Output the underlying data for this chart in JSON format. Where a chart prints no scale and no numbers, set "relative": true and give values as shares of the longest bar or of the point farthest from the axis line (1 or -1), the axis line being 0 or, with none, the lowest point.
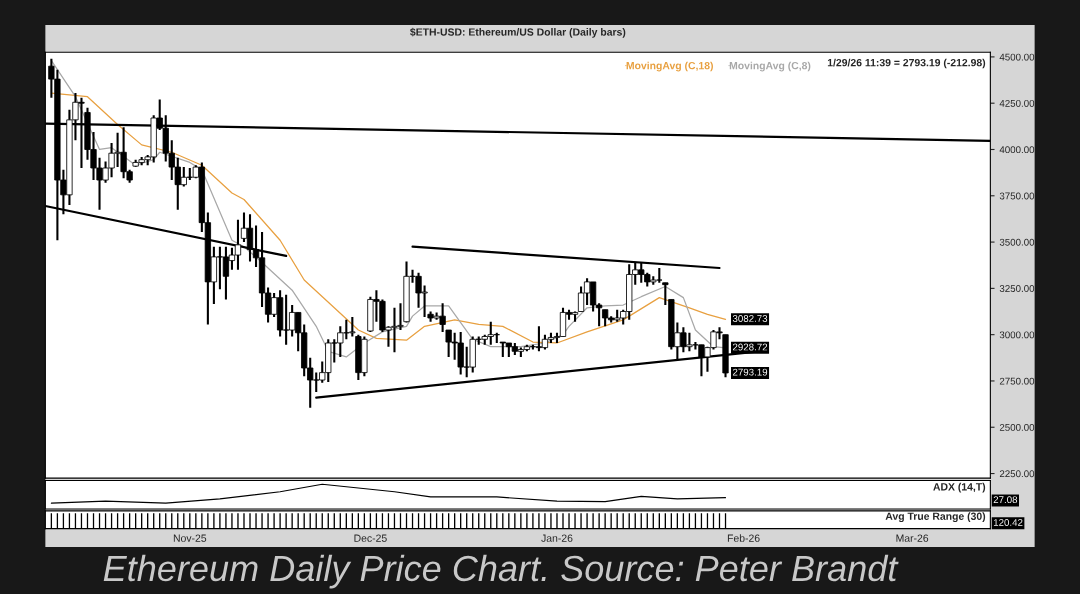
{
  "chart_data": [
    {
      "type": "candlestick",
      "title": "$ETH-USD: Ethereum/US Dollar (Daily bars)",
      "x": [
        "2025-10-09",
        "2025-10-10",
        "2025-10-11",
        "2025-10-12",
        "2025-10-13",
        "2025-10-14",
        "2025-10-15",
        "2025-10-16",
        "2025-10-17",
        "2025-10-18",
        "2025-10-19",
        "2025-10-20",
        "2025-10-21",
        "2025-10-22",
        "2025-10-23",
        "2025-10-24",
        "2025-10-25",
        "2025-10-26",
        "2025-10-27",
        "2025-10-28",
        "2025-10-29",
        "2025-10-30",
        "2025-10-31",
        "2025-11-01",
        "2025-11-02",
        "2025-11-03",
        "2025-11-04",
        "2025-11-05",
        "2025-11-06",
        "2025-11-07",
        "2025-11-08",
        "2025-11-09",
        "2025-11-10",
        "2025-11-11",
        "2025-11-12",
        "2025-11-13",
        "2025-11-14",
        "2025-11-15",
        "2025-11-16",
        "2025-11-17",
        "2025-11-18",
        "2025-11-19",
        "2025-11-20",
        "2025-11-21",
        "2025-11-22",
        "2025-11-23",
        "2025-11-24",
        "2025-11-25",
        "2025-11-26",
        "2025-11-27",
        "2025-11-28",
        "2025-11-29",
        "2025-11-30",
        "2025-12-01",
        "2025-12-02",
        "2025-12-03",
        "2025-12-04",
        "2025-12-05",
        "2025-12-06",
        "2025-12-07",
        "2025-12-08",
        "2025-12-09",
        "2025-12-10",
        "2025-12-11",
        "2025-12-12",
        "2025-12-13",
        "2025-12-14",
        "2025-12-15",
        "2025-12-16",
        "2025-12-17",
        "2025-12-18",
        "2025-12-19",
        "2025-12-20",
        "2025-12-21",
        "2025-12-22",
        "2025-12-23",
        "2025-12-24",
        "2025-12-25",
        "2025-12-26",
        "2025-12-27",
        "2025-12-28",
        "2025-12-29",
        "2025-12-30",
        "2025-12-31",
        "2026-01-01",
        "2026-01-02",
        "2026-01-03",
        "2026-01-04",
        "2026-01-05",
        "2026-01-06",
        "2026-01-07",
        "2026-01-08",
        "2026-01-09",
        "2026-01-10",
        "2026-01-11",
        "2026-01-12",
        "2026-01-13",
        "2026-01-14",
        "2026-01-15",
        "2026-01-16",
        "2026-01-17",
        "2026-01-18",
        "2026-01-19",
        "2026-01-20",
        "2026-01-21",
        "2026-01-22",
        "2026-01-23",
        "2026-01-24",
        "2026-01-25",
        "2026-01-26",
        "2026-01-27",
        "2026-01-28",
        "2026-01-29"
      ],
      "ohlc": [
        [
          4450,
          4490,
          4280,
          4380
        ],
        [
          4380,
          4430,
          3510,
          3835
        ],
        [
          3835,
          3890,
          3650,
          3755
        ],
        [
          3755,
          4215,
          3700,
          4160
        ],
        [
          4160,
          4305,
          4050,
          4255
        ],
        [
          4255,
          4280,
          3900,
          4250
        ],
        [
          4200,
          4225,
          3945,
          4000
        ],
        [
          4000,
          4095,
          3835,
          3900
        ],
        [
          3900,
          3955,
          3675,
          3835
        ],
        [
          3835,
          3935,
          3820,
          3900
        ],
        [
          3900,
          4035,
          3850,
          3980
        ],
        [
          3980,
          4090,
          3905,
          3985
        ],
        [
          3985,
          4120,
          3845,
          3880
        ],
        [
          3880,
          3890,
          3820,
          3835
        ],
        [
          3910,
          3945,
          3905,
          3930
        ],
        [
          3930,
          3960,
          3915,
          3945
        ],
        [
          3945,
          3970,
          3915,
          3960
        ],
        [
          3960,
          4185,
          3930,
          4170
        ],
        [
          4170,
          4270,
          4105,
          4115
        ],
        [
          4115,
          4185,
          3935,
          3980
        ],
        [
          3980,
          4050,
          3835,
          3905
        ],
        [
          3905,
          3955,
          3675,
          3810
        ],
        [
          3810,
          3905,
          3800,
          3850
        ],
        [
          3850,
          3900,
          3835,
          3850
        ],
        [
          3850,
          3915,
          3845,
          3905
        ],
        [
          3905,
          3930,
          3555,
          3605
        ],
        [
          3605,
          3660,
          3055,
          3285
        ],
        [
          3285,
          3475,
          3165,
          3420
        ],
        [
          3420,
          3475,
          3245,
          3420
        ],
        [
          3420,
          3475,
          3190,
          3315
        ],
        [
          3400,
          3470,
          3350,
          3430
        ],
        [
          3430,
          3620,
          3350,
          3485
        ],
        [
          3520,
          3660,
          3500,
          3575
        ],
        [
          3575,
          3650,
          3395,
          3460
        ],
        [
          3460,
          3590,
          3365,
          3415
        ],
        [
          3415,
          3555,
          3150,
          3225
        ],
        [
          3225,
          3255,
          3065,
          3110
        ],
        [
          3110,
          3225,
          3095,
          3200
        ],
        [
          3200,
          3240,
          2990,
          3025
        ],
        [
          3025,
          3215,
          2945,
          3025
        ],
        [
          3025,
          3160,
          2990,
          3120
        ],
        [
          3120,
          3120,
          2910,
          3010
        ],
        [
          3010,
          3055,
          2775,
          2820
        ],
        [
          2820,
          2875,
          2605,
          2755
        ],
        [
          2755,
          2795,
          2690,
          2755
        ],
        [
          2755,
          2855,
          2740,
          2795
        ],
        [
          2795,
          2975,
          2745,
          2955
        ],
        [
          2955,
          2975,
          2850,
          2955
        ],
        [
          2955,
          3045,
          2880,
          3010
        ],
        [
          3010,
          3080,
          2975,
          3010
        ],
        [
          3010,
          3095,
          2990,
          3015
        ],
        [
          2990,
          3000,
          2755,
          2795
        ],
        [
          2795,
          2990,
          2775,
          2975
        ],
        [
          3020,
          3205,
          3015,
          3190
        ],
        [
          3190,
          3240,
          3070,
          3180
        ],
        [
          3180,
          3190,
          3015,
          3025
        ],
        [
          3025,
          3045,
          2935,
          3040
        ],
        [
          3040,
          3145,
          2905,
          3045
        ],
        [
          3045,
          3170,
          3025,
          3050
        ],
        [
          3070,
          3395,
          3065,
          3315
        ],
        [
          3315,
          3350,
          3280,
          3315
        ],
        [
          3315,
          3335,
          3145,
          3225
        ],
        [
          3225,
          3265,
          3095,
          3230
        ],
        [
          3110,
          3125,
          3070,
          3090
        ],
        [
          3090,
          3120,
          3080,
          3100
        ],
        [
          3100,
          3170,
          3015,
          3055
        ],
        [
          3025,
          3025,
          2880,
          2960
        ],
        [
          2960,
          3010,
          2865,
          2955
        ],
        [
          2955,
          3015,
          2785,
          2825
        ],
        [
          2825,
          2935,
          2770,
          2825
        ],
        [
          2825,
          2990,
          2795,
          2975
        ],
        [
          2975,
          2990,
          2945,
          2975
        ],
        [
          2975,
          3000,
          2945,
          2990
        ],
        [
          2990,
          3070,
          2945,
          3000
        ],
        [
          3000,
          3010,
          2955,
          3000
        ],
        [
          2960,
          2960,
          2880,
          2955
        ],
        [
          2955,
          2955,
          2880,
          2935
        ],
        [
          2935,
          2955,
          2890,
          2910
        ],
        [
          2910,
          2930,
          2880,
          2920
        ],
        [
          2920,
          2945,
          2910,
          2935
        ],
        [
          2935,
          2945,
          2920,
          2935
        ],
        [
          2935,
          3045,
          2910,
          2930
        ],
        [
          2930,
          3000,
          2920,
          2975
        ],
        [
          2975,
          3010,
          2955,
          2985
        ],
        [
          2985,
          3010,
          2955,
          2990
        ],
        [
          2990,
          3145,
          2990,
          3120
        ],
        [
          3120,
          3135,
          3080,
          3110
        ],
        [
          3110,
          3125,
          3070,
          3120
        ],
        [
          3125,
          3260,
          3125,
          3225
        ],
        [
          3225,
          3305,
          3160,
          3285
        ],
        [
          3285,
          3285,
          3125,
          3160
        ],
        [
          3160,
          3170,
          3045,
          3145
        ],
        [
          3135,
          3135,
          3045,
          3090
        ],
        [
          3090,
          3100,
          3065,
          3080
        ],
        [
          3080,
          3135,
          3070,
          3090
        ],
        [
          3090,
          3135,
          3055,
          3125
        ],
        [
          3125,
          3380,
          3080,
          3325
        ],
        [
          3325,
          3390,
          3270,
          3350
        ],
        [
          3350,
          3390,
          3280,
          3325
        ],
        [
          3325,
          3335,
          3260,
          3285
        ],
        [
          3285,
          3315,
          3270,
          3295
        ],
        [
          3295,
          3360,
          3280,
          3295
        ],
        [
          3280,
          3280,
          3160,
          3270
        ],
        [
          3190,
          3190,
          2920,
          2935
        ],
        [
          2935,
          3065,
          2865,
          3010
        ],
        [
          3010,
          3040,
          2905,
          2935
        ],
        [
          2935,
          3010,
          2910,
          2945
        ],
        [
          2945,
          2960,
          2920,
          2945
        ],
        [
          2945,
          2945,
          2775,
          2880
        ],
        [
          2880,
          2935,
          2800,
          2930
        ],
        [
          2930,
          3025,
          2920,
          3015
        ],
        [
          3015,
          3040,
          2975,
          3010
        ],
        [
          3000,
          3000,
          2770,
          2793.19
        ]
      ],
      "series": [
        {
          "type": "line",
          "name": "MovingAvg (C,18)",
          "color": "#e8a040",
          "x": [
            "2025-10-09",
            "2025-10-15",
            "2025-10-20",
            "2025-10-24",
            "2025-10-29",
            "2025-11-03",
            "2025-11-08",
            "2025-11-10",
            "2025-11-16",
            "2025-11-20",
            "2025-11-25",
            "2025-11-29",
            "2025-12-02",
            "2025-12-07",
            "2025-12-10",
            "2025-12-15",
            "2025-12-19",
            "2025-12-23",
            "2025-12-28",
            "2026-01-01",
            "2026-01-06",
            "2026-01-12",
            "2026-01-18",
            "2026-01-23",
            "2026-01-26",
            "2026-01-29"
          ],
          "values": [
            4305,
            4285,
            4135,
            4025,
            3985,
            3915,
            3765,
            3730,
            3510,
            3295,
            3145,
            3025,
            2980,
            2970,
            3045,
            3080,
            3055,
            3045,
            2960,
            2955,
            3015,
            3080,
            3200,
            3145,
            3110,
            3082.73
          ]
        },
        {
          "type": "line",
          "name": "MovingAvg (C,8)",
          "color": "#a8a8a8",
          "x": [
            "2025-10-09",
            "2025-10-13",
            "2025-10-17",
            "2025-10-19",
            "2025-10-23",
            "2025-10-26",
            "2025-10-27",
            "2025-11-01",
            "2025-11-03",
            "2025-11-08",
            "2025-11-10",
            "2025-11-13",
            "2025-11-18",
            "2025-11-22",
            "2025-11-24",
            "2025-11-27",
            "2025-11-30",
            "2025-12-03",
            "2025-12-07",
            "2025-12-08",
            "2025-12-10",
            "2025-12-14",
            "2025-12-16",
            "2025-12-18",
            "2025-12-21",
            "2025-12-26",
            "2025-12-30",
            "2026-01-02",
            "2026-01-03",
            "2026-01-06",
            "2026-01-09",
            "2026-01-12",
            "2026-01-15",
            "2026-01-19",
            "2026-01-22",
            "2026-01-24",
            "2026-01-27",
            "2026-01-29"
          ],
          "values": [
            4480,
            4285,
            4000,
            4010,
            3915,
            3945,
            3985,
            3930,
            3890,
            3510,
            3475,
            3390,
            3240,
            3045,
            2910,
            2880,
            2955,
            3015,
            3045,
            3100,
            3155,
            3155,
            3065,
            2975,
            2935,
            2935,
            2955,
            3000,
            3045,
            3145,
            3155,
            3160,
            3205,
            3260,
            3200,
            3025,
            2935,
            2928.72
          ]
        },
        {
          "type": "line",
          "color": "#000000",
          "x": [
            "2025-10-08",
            "2026-03-14"
          ],
          "values": [
            4140,
            4047
          ]
        },
        {
          "type": "line",
          "color": "#000000",
          "x": [
            "2025-10-08",
            "2025-11-17"
          ],
          "values": [
            3695,
            3425
          ]
        },
        {
          "type": "line",
          "color": "#000000",
          "x": [
            "2025-12-08",
            "2026-01-28"
          ],
          "values": [
            3475,
            3360
          ]
        },
        {
          "type": "line",
          "color": "#000000",
          "x": [
            "2025-11-22",
            "2026-02-05"
          ],
          "values": [
            2660,
            2915
          ]
        }
      ],
      "xlim": [
        "2025-10-08",
        "2026-03-14"
      ],
      "ylim": [
        2225,
        4525
      ],
      "yticks": [
        {
          "value": 2250,
          "label": "2250.00"
        },
        {
          "value": 2500,
          "label": "2500.00"
        },
        {
          "value": 2750,
          "label": "2750.00"
        },
        {
          "value": 3000,
          "label": "3000.00"
        },
        {
          "value": 3250,
          "label": "3250.00"
        },
        {
          "value": 3500,
          "label": "3500.00"
        },
        {
          "value": 3750,
          "label": "3750.00"
        },
        {
          "value": 4000,
          "label": "4000.00"
        },
        {
          "value": 4250,
          "label": "4250.00"
        },
        {
          "value": 4500,
          "label": "4500.00"
        }
      ],
      "tick_labels": "y",
      "legend": "top right",
      "annotations": [
        "1/29/26 11:39 = 2793.19 (-212.98)",
        {
          "text": "3082.73",
          "x": "2026-01-29",
          "y": 3082.73
        },
        {
          "text": "2928.72",
          "x": "2026-01-29",
          "y": 2928.72
        },
        {
          "text": "2793.19",
          "x": "2026-01-29",
          "y": 2793.19
        },
        "Ethereum Daily Price Chart. Source: Peter Brandt"
      ]
    },
    {
      "type": "line",
      "title": "ADX (14,T)",
      "relative": true,
      "tick_labels": false,
      "xlim": [
        "2025-10-08",
        "2026-03-14"
      ],
      "series": [
        {
          "color": "#000000",
          "x": [
            "2025-10-09",
            "2025-10-18",
            "2025-10-28",
            "2025-11-06",
            "2025-11-16",
            "2025-11-23",
            "2025-12-05",
            "2025-12-11",
            "2025-12-22",
            "2026-01-01",
            "2026-01-09",
            "2026-01-15",
            "2026-01-21",
            "2026-01-29"
          ],
          "values": [
            0.24,
            0.32,
            0.24,
            0.41,
            0.7,
            1,
            0.7,
            0.49,
            0.49,
            0.32,
            0.3,
            0.51,
            0.41,
            0.46
          ]
        }
      ],
      "annotations": [
        "27.08"
      ]
    },
    {
      "type": "bar",
      "title": "Avg True Range (30)",
      "relative": true,
      "tick_labels": "x",
      "xlim": [
        "2025-10-08",
        "2026-03-14"
      ],
      "xticks": [
        {
          "value": "2025-11-01",
          "label": "Nov-25"
        },
        {
          "value": "2025-12-01",
          "label": "Dec-25"
        },
        {
          "value": "2026-01-01",
          "label": "Jan-26"
        },
        {
          "value": "2026-02-01",
          "label": "Feb-26"
        },
        {
          "value": "2026-03-01",
          "label": "Mar-26"
        }
      ],
      "series": [
        {
          "color": "#000000",
          "x": [
            "2025-10-09",
            "2025-10-10",
            "2025-10-11",
            "2025-10-12",
            "2025-10-13",
            "2025-10-14",
            "2025-10-15",
            "2025-10-16",
            "2025-10-17",
            "2025-10-18",
            "2025-10-19",
            "2025-10-20",
            "2025-10-21",
            "2025-10-22",
            "2025-10-23",
            "2025-10-24",
            "2025-10-25",
            "2025-10-26",
            "2025-10-27",
            "2025-10-28",
            "2025-10-29",
            "2025-10-30",
            "2025-10-31",
            "2025-11-01",
            "2025-11-02",
            "2025-11-03",
            "2025-11-04",
            "2025-11-05",
            "2025-11-06",
            "2025-11-07",
            "2025-11-08",
            "2025-11-09",
            "2025-11-10",
            "2025-11-11",
            "2025-11-12",
            "2025-11-13",
            "2025-11-14",
            "2025-11-15",
            "2025-11-16",
            "2025-11-17",
            "2025-11-18",
            "2025-11-19",
            "2025-11-20",
            "2025-11-21",
            "2025-11-22",
            "2025-11-23",
            "2025-11-24",
            "2025-11-25",
            "2025-11-26",
            "2025-11-27",
            "2025-11-28",
            "2025-11-29",
            "2025-11-30",
            "2025-12-01",
            "2025-12-02",
            "2025-12-03",
            "2025-12-04",
            "2025-12-05",
            "2025-12-06",
            "2025-12-07",
            "2025-12-08",
            "2025-12-09",
            "2025-12-10",
            "2025-12-11",
            "2025-12-12",
            "2025-12-13",
            "2025-12-14",
            "2025-12-15",
            "2025-12-16",
            "2025-12-17",
            "2025-12-18",
            "2025-12-19",
            "2025-12-20",
            "2025-12-21",
            "2025-12-22",
            "2025-12-23",
            "2025-12-24",
            "2025-12-25",
            "2025-12-26",
            "2025-12-27",
            "2025-12-28",
            "2025-12-29",
            "2025-12-30",
            "2025-12-31",
            "2026-01-01",
            "2026-01-02",
            "2026-01-03",
            "2026-01-04",
            "2026-01-05",
            "2026-01-06",
            "2026-01-07",
            "2026-01-08",
            "2026-01-09",
            "2026-01-10",
            "2026-01-11",
            "2026-01-12",
            "2026-01-13",
            "2026-01-14",
            "2026-01-15",
            "2026-01-16",
            "2026-01-17",
            "2026-01-18",
            "2026-01-19",
            "2026-01-20",
            "2026-01-21",
            "2026-01-22",
            "2026-01-23",
            "2026-01-24",
            "2026-01-25",
            "2026-01-26",
            "2026-01-27",
            "2026-01-28",
            "2026-01-29"
          ],
          "values": [
            1,
            1,
            1,
            1,
            1,
            1,
            1,
            1,
            1,
            1,
            1,
            1,
            1,
            1,
            1,
            1,
            1,
            1,
            1,
            1,
            1,
            1,
            1,
            1,
            1,
            1,
            1,
            1,
            1,
            1,
            1,
            1,
            1,
            1,
            1,
            1,
            1,
            1,
            1,
            1,
            1,
            1,
            1,
            1,
            1,
            1,
            1,
            1,
            1,
            1,
            1,
            1,
            1,
            1,
            1,
            1,
            1,
            1,
            1,
            1,
            1,
            1,
            1,
            1,
            1,
            1,
            1,
            1,
            1,
            1,
            1,
            1,
            1,
            1,
            1,
            1,
            1,
            1,
            1,
            1,
            1,
            1,
            1,
            1,
            1,
            1,
            1,
            1,
            1,
            1,
            1,
            1,
            1,
            1,
            1,
            1,
            1,
            1,
            1,
            1,
            1,
            1,
            1,
            1,
            1,
            1,
            1,
            1,
            1,
            1,
            1,
            1,
            1
          ]
        }
      ],
      "annotations": [
        "120.42"
      ]
    }
  ]
}
